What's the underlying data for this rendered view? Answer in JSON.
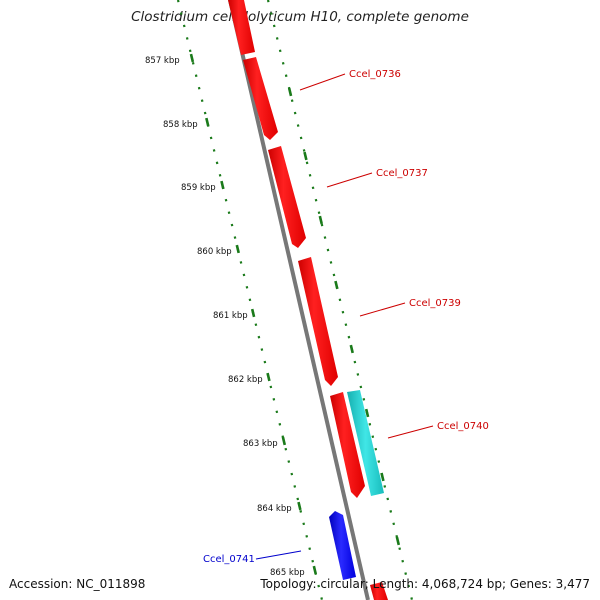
{
  "title": "Clostridium cellulolyticum H10, complete genome",
  "footer": {
    "accession": "Accession: NC_011898",
    "summary": "Topology: circular; Length: 4,068,724 bp; Genes: 3,477"
  },
  "kbp_labels": [
    "857 kbp",
    "858 kbp",
    "859 kbp",
    "860 kbp",
    "861 kbp",
    "862 kbp",
    "863 kbp",
    "864 kbp",
    "865 kbp"
  ],
  "genes": [
    {
      "name": "Ccel_0736",
      "color": "#cc0000"
    },
    {
      "name": "Ccel_0737",
      "color": "#cc0000"
    },
    {
      "name": "Ccel_0739",
      "color": "#cc0000"
    },
    {
      "name": "Ccel_0740",
      "color": "#cc0000"
    },
    {
      "name": "Ccel_0741",
      "color": "#0000cc"
    }
  ],
  "colors": {
    "forward_cds": "#ff0000",
    "reverse_cds": "#0000ff",
    "other_feature": "#22cccc",
    "backbone": "#777777",
    "tick": "#1a7a1a"
  }
}
